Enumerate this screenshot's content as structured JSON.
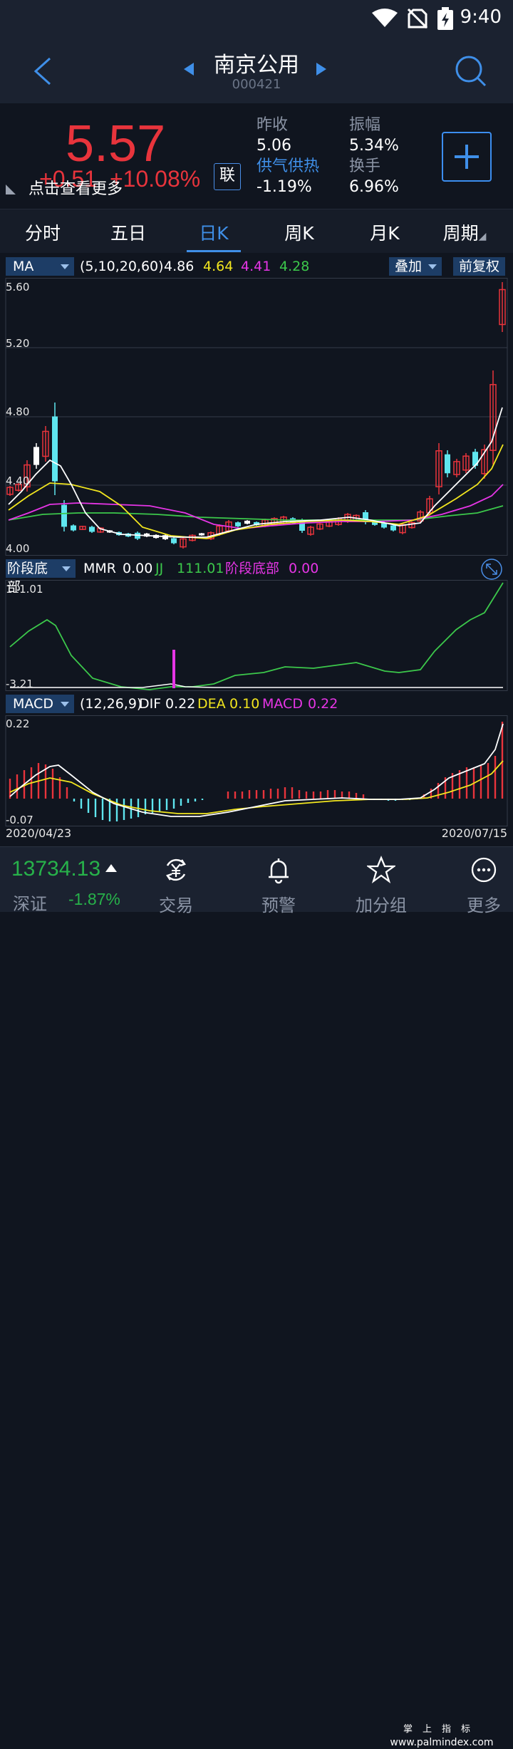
{
  "status": {
    "time": "9:40"
  },
  "header": {
    "title": "南京公用",
    "code": "000421"
  },
  "quote": {
    "price": "5.57",
    "change": "+0.51",
    "change_pct": "+10.08%",
    "hint": "点击查看更多",
    "lian": "联",
    "prev_close_label": "昨收",
    "prev_close": "5.06",
    "sector_label": "供气供热",
    "sector_change": "-1.19%",
    "amplitude_label": "振幅",
    "amplitude": "5.34%",
    "turnover_label": "换手",
    "turnover": "6.96%",
    "colors": {
      "up": "#e8343c",
      "accent": "#3f8fe8"
    }
  },
  "tabs": [
    {
      "label": "分时"
    },
    {
      "label": "五日"
    },
    {
      "label": "日K"
    },
    {
      "label": "周K"
    },
    {
      "label": "月K"
    },
    {
      "label": "周期"
    }
  ],
  "kline": {
    "indicator": "MA",
    "params": "(5,10,20,60)",
    "ma5": "4.86",
    "ma10": "4.64",
    "ma20": "4.41",
    "ma60": "4.28",
    "overlay": "叠加",
    "adjust": "前复权",
    "axis": [
      "5.60",
      "5.20",
      "4.80",
      "4.40",
      "4.00"
    ]
  },
  "bottom_indicator": {
    "name": "阶段底部",
    "mmr_label": "MMR",
    "mmr": "0.00",
    "jj_label": "JJ",
    "jj": "111.01",
    "stage_label": "阶段底部",
    "stage": "0.00",
    "axis_top": "111.01",
    "axis_bottom": "-3.21"
  },
  "macd": {
    "name": "MACD",
    "params": "(12,26,9)",
    "dif_label": "DIF",
    "dif": "0.22",
    "dea_label": "DEA",
    "dea": "0.10",
    "macd_label": "MACD",
    "macd": "0.22",
    "axis_top": "0.22",
    "axis_bottom": "-0.07",
    "date_start": "2020/04/23",
    "date_end": "2020/07/15"
  },
  "footer": {
    "index_value": "13734.13",
    "index_name": "深证",
    "index_change": "-1.87%",
    "nav": [
      {
        "label": "交易",
        "icon": "yuan-icon"
      },
      {
        "label": "预警",
        "icon": "bell-icon"
      },
      {
        "label": "加分组",
        "icon": "star-icon"
      },
      {
        "label": "更多",
        "icon": "more-icon"
      }
    ]
  },
  "watermark": {
    "top": "掌上指标",
    "bottom": "www.palmindex.com"
  }
}
